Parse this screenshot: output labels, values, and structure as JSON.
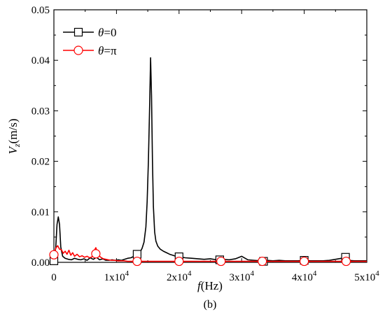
{
  "chart_data": {
    "type": "line",
    "x_axis": {
      "label_var": "f",
      "label_unit": "(Hz)",
      "range": [
        0,
        50000
      ],
      "ticks": [
        0,
        10000,
        20000,
        30000,
        40000,
        50000
      ],
      "tick_labels": [
        "0",
        "1x10",
        "2x10",
        "3x10",
        "4x10",
        "5x10"
      ],
      "tick_exponent": "4"
    },
    "y_axis": {
      "label_var": "V",
      "label_sub": "z",
      "label_unit": "(m/s)",
      "range": [
        0,
        0.05
      ],
      "ticks": [
        0,
        0.01,
        0.02,
        0.03,
        0.04,
        0.05
      ],
      "tick_labels": [
        "0.00",
        "0.01",
        "0.02",
        "0.03",
        "0.04",
        "0.05"
      ]
    },
    "panel_label": "(b)",
    "legend_position": "top-left",
    "series": [
      {
        "name": "θ=0",
        "label_var": "θ",
        "label_rest": "=0",
        "color": "#000000",
        "marker": "square",
        "x": [
          0,
          300,
          500,
          700,
          900,
          1100,
          1400,
          1800,
          2300,
          2800,
          3300,
          3800,
          4300,
          4800,
          5300,
          5800,
          6300,
          6800,
          7300,
          7800,
          8300,
          8800,
          9300,
          9800,
          10300,
          10800,
          11300,
          11800,
          12300,
          12800,
          13300,
          13700,
          14100,
          14400,
          14700,
          14900,
          15100,
          15300,
          15450,
          15600,
          15750,
          15900,
          16100,
          16300,
          16600,
          17000,
          17500,
          18000,
          18500,
          19000,
          19500,
          20000,
          21000,
          22000,
          23000,
          24000,
          25000,
          26000,
          27000,
          28000,
          29000,
          30000,
          31000,
          32000,
          33000,
          34000,
          35000,
          36000,
          37000,
          38000,
          39000,
          40000,
          41000,
          42000,
          43000,
          44000,
          45000,
          46000,
          47000,
          48000,
          49000,
          50000
        ],
        "y": [
          0.0002,
          0.003,
          0.0075,
          0.009,
          0.0075,
          0.003,
          0.0012,
          0.0008,
          0.0006,
          0.0005,
          0.0008,
          0.0006,
          0.0005,
          0.0007,
          0.0004,
          0.0009,
          0.0006,
          0.001,
          0.0005,
          0.0007,
          0.0004,
          0.0004,
          0.0005,
          0.0004,
          0.0005,
          0.0004,
          0.0006,
          0.0008,
          0.0009,
          0.0012,
          0.0015,
          0.0018,
          0.0028,
          0.004,
          0.007,
          0.012,
          0.02,
          0.031,
          0.0405,
          0.033,
          0.02,
          0.011,
          0.006,
          0.0042,
          0.0032,
          0.0026,
          0.0022,
          0.0019,
          0.0016,
          0.0014,
          0.0012,
          0.0011,
          0.0009,
          0.0008,
          0.0007,
          0.0006,
          0.0007,
          0.0005,
          0.0006,
          0.0005,
          0.0007,
          0.0012,
          0.0005,
          0.0004,
          0.0003,
          0.0004,
          0.0003,
          0.0004,
          0.0003,
          0.0003,
          0.0003,
          0.0004,
          0.0003,
          0.0003,
          0.0003,
          0.0004,
          0.0006,
          0.0008,
          0.0004,
          0.0003,
          0.0003,
          0.0003
        ],
        "markers_x": [
          0,
          13300,
          20000,
          26500,
          33500,
          40000,
          46600
        ],
        "markers_y": [
          0.0003,
          0.0016,
          0.0011,
          0.0005,
          0.0002,
          0.0004,
          0.001
        ]
      },
      {
        "name": "θ=π",
        "label_var": "θ",
        "label_rest": "=π",
        "color": "#ff0000",
        "marker": "circle",
        "x": [
          0,
          300,
          600,
          900,
          1200,
          1500,
          1800,
          2100,
          2400,
          2700,
          3000,
          3300,
          3700,
          4100,
          4500,
          4900,
          5300,
          5700,
          6100,
          6400,
          6700,
          7000,
          7300,
          7600,
          7900,
          8300,
          8700,
          9200,
          9700,
          10200,
          10700,
          11200,
          11800,
          12500,
          13300,
          14000,
          15000,
          16000,
          17000,
          18000,
          19000,
          20000,
          22000,
          24000,
          26000,
          28000,
          30000,
          32000,
          34000,
          36000,
          38000,
          40000,
          42000,
          44000,
          46000,
          48000,
          50000
        ],
        "y": [
          0.0015,
          0.0028,
          0.0033,
          0.0026,
          0.0025,
          0.0018,
          0.0022,
          0.0016,
          0.0024,
          0.0014,
          0.0019,
          0.0012,
          0.0016,
          0.0011,
          0.0013,
          0.001,
          0.0012,
          0.0009,
          0.0011,
          0.0022,
          0.0029,
          0.0018,
          0.0012,
          0.0009,
          0.0007,
          0.0006,
          0.0005,
          0.0004,
          0.0004,
          0.0003,
          0.0003,
          0.0003,
          0.0002,
          0.0002,
          0.0002,
          0.0002,
          0.0002,
          0.0002,
          0.0002,
          0.0002,
          0.0002,
          0.0002,
          0.0002,
          0.0002,
          0.0002,
          0.0002,
          0.0002,
          0.0002,
          0.0002,
          0.0002,
          0.0002,
          0.0002,
          0.0002,
          0.0002,
          0.0002,
          0.0002,
          0.0002
        ],
        "markers_x": [
          0,
          6700,
          13300,
          20000,
          26700,
          33300,
          40000,
          46700
        ],
        "markers_y": [
          0.0015,
          0.0017,
          0.0002,
          0.0002,
          0.0002,
          0.0002,
          0.0002,
          0.0002
        ]
      }
    ]
  }
}
